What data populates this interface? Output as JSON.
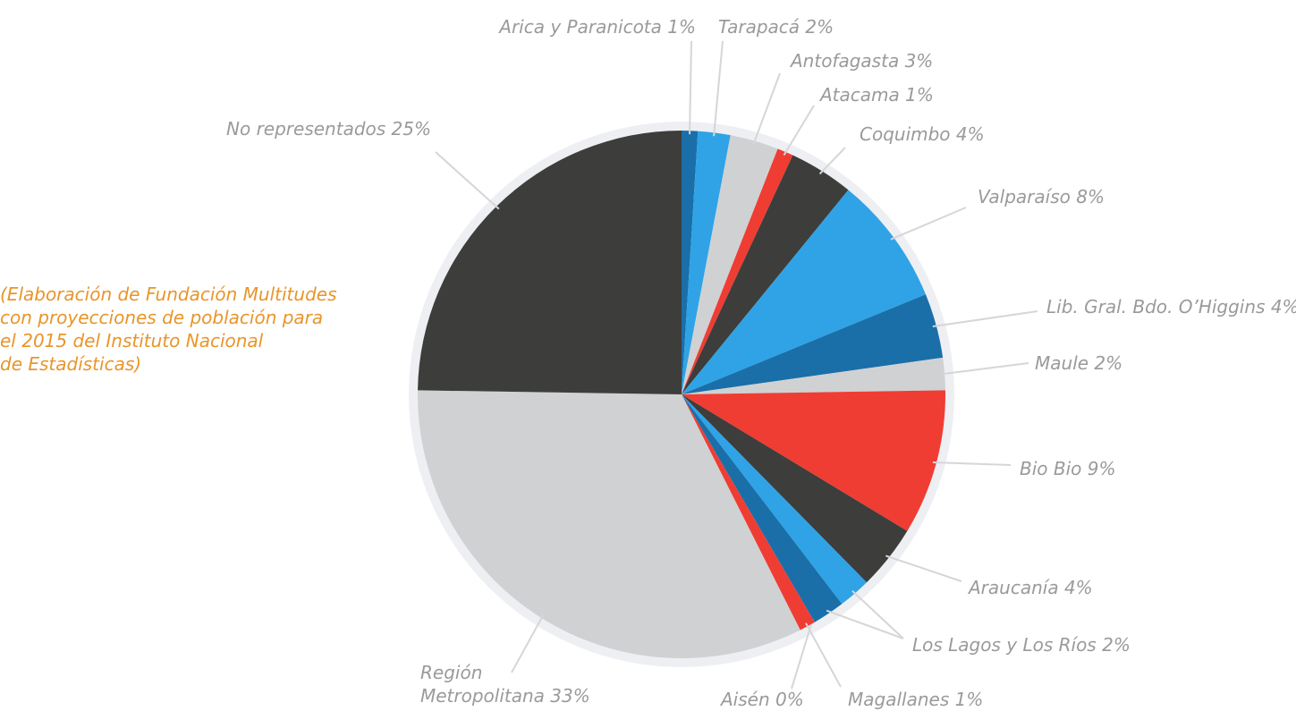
{
  "chart_data": {
    "type": "pie",
    "categories": [
      "Arica  y Paranicota",
      "Tarapacá",
      "Antofagasta",
      "Atacama",
      "Coquimbo",
      "Valparaíso",
      "Lib. Gral. Bdo. O’Higgins",
      "Maule",
      "Bio Bio",
      "Araucanía",
      "Los Lagos y Los Ríos",
      null,
      "Aisén",
      "Magallanes",
      "Región Metropolitana",
      "No representados"
    ],
    "values": [
      1,
      2,
      3,
      1,
      4,
      8,
      4,
      2,
      9,
      4,
      2,
      2,
      0,
      1,
      33,
      25
    ],
    "value_labels": [
      "1%",
      "2%",
      "3%",
      "1%",
      "4%",
      "8%",
      "4%",
      "2%",
      "9%",
      "4%",
      "2%",
      null,
      "0%",
      "1%",
      "33%",
      "25%"
    ],
    "colors": [
      "#1a6fa8",
      "#2fa3e6",
      "#d0d1d3",
      "#ef3d33",
      "#3d3d3b",
      "#2fa3e6",
      "#1a6fa8",
      "#d0d1d3",
      "#ef3d33",
      "#3d3d3b",
      "#2fa3e6",
      "#1a6fa8",
      "#ef3d33",
      "#ef3d33",
      "#d0d1d3",
      "#3d3d3b"
    ],
    "note": [
      "(Elaboración de Fundación Multitudes",
      "con proyecciones de población para",
      "el 2015 del Instituto Nacional",
      "de Estadísticas)"
    ]
  }
}
